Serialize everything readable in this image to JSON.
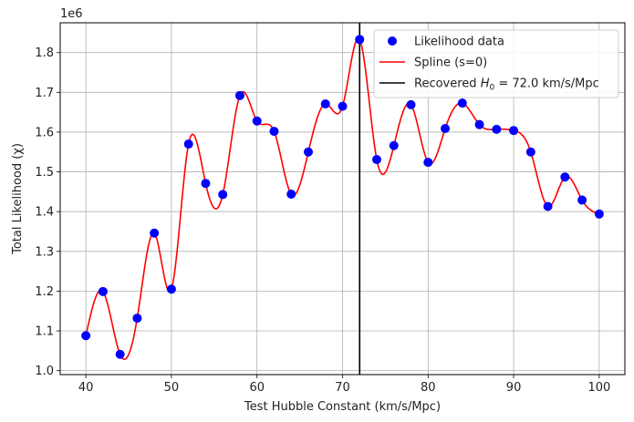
{
  "chart_data": {
    "type": "scatter",
    "xlabel": "Test Hubble Constant (km/s/Mpc)",
    "ylabel": "Total Likelihood (χ)",
    "y_offset_text": "1e6",
    "xlim": [
      37,
      103
    ],
    "ylim": [
      0.99,
      1.875
    ],
    "x_ticks": [
      40,
      50,
      60,
      70,
      80,
      90,
      100
    ],
    "y_ticks": [
      1.0,
      1.1,
      1.2,
      1.3,
      1.4,
      1.5,
      1.6,
      1.7,
      1.8
    ],
    "x_tick_labels": [
      "40",
      "50",
      "60",
      "70",
      "80",
      "90",
      "100"
    ],
    "y_tick_labels": [
      "1.0",
      "1.1",
      "1.2",
      "1.3",
      "1.4",
      "1.5",
      "1.6",
      "1.7",
      "1.8"
    ],
    "y_scale_note": "values in units of 1e6",
    "grid": true,
    "legend_position": "top-right",
    "series": [
      {
        "name": "Likelihood data",
        "kind": "scatter",
        "color": "#0000ff",
        "x": [
          40,
          42,
          44,
          46,
          48,
          50,
          52,
          54,
          56,
          58,
          60,
          62,
          64,
          66,
          68,
          70,
          72,
          74,
          76,
          78,
          80,
          82,
          84,
          86,
          88,
          90,
          92,
          94,
          96,
          98,
          100
        ],
        "y": [
          1.088,
          1.199,
          1.041,
          1.132,
          1.346,
          1.205,
          1.57,
          1.471,
          1.443,
          1.692,
          1.628,
          1.602,
          1.444,
          1.55,
          1.671,
          1.665,
          1.833,
          1.531,
          1.566,
          1.669,
          1.524,
          1.609,
          1.673,
          1.619,
          1.607,
          1.604,
          1.55,
          1.413,
          1.487,
          1.429,
          1.394
        ]
      },
      {
        "name": "Spline (s=0)",
        "kind": "line",
        "color": "#ff0000"
      },
      {
        "name": "Recovered H0 = 72.0 km/s/Mpc",
        "kind": "vline",
        "color": "#000000",
        "x": 72.0
      }
    ],
    "legend": {
      "entries": [
        "Likelihood data",
        "Spline (s=0)"
      ],
      "vline_label_prefix": "Recovered ",
      "vline_label_symbol": "H",
      "vline_label_subscript": "0",
      "vline_label_suffix": " = 72.0 km/s/Mpc"
    }
  }
}
